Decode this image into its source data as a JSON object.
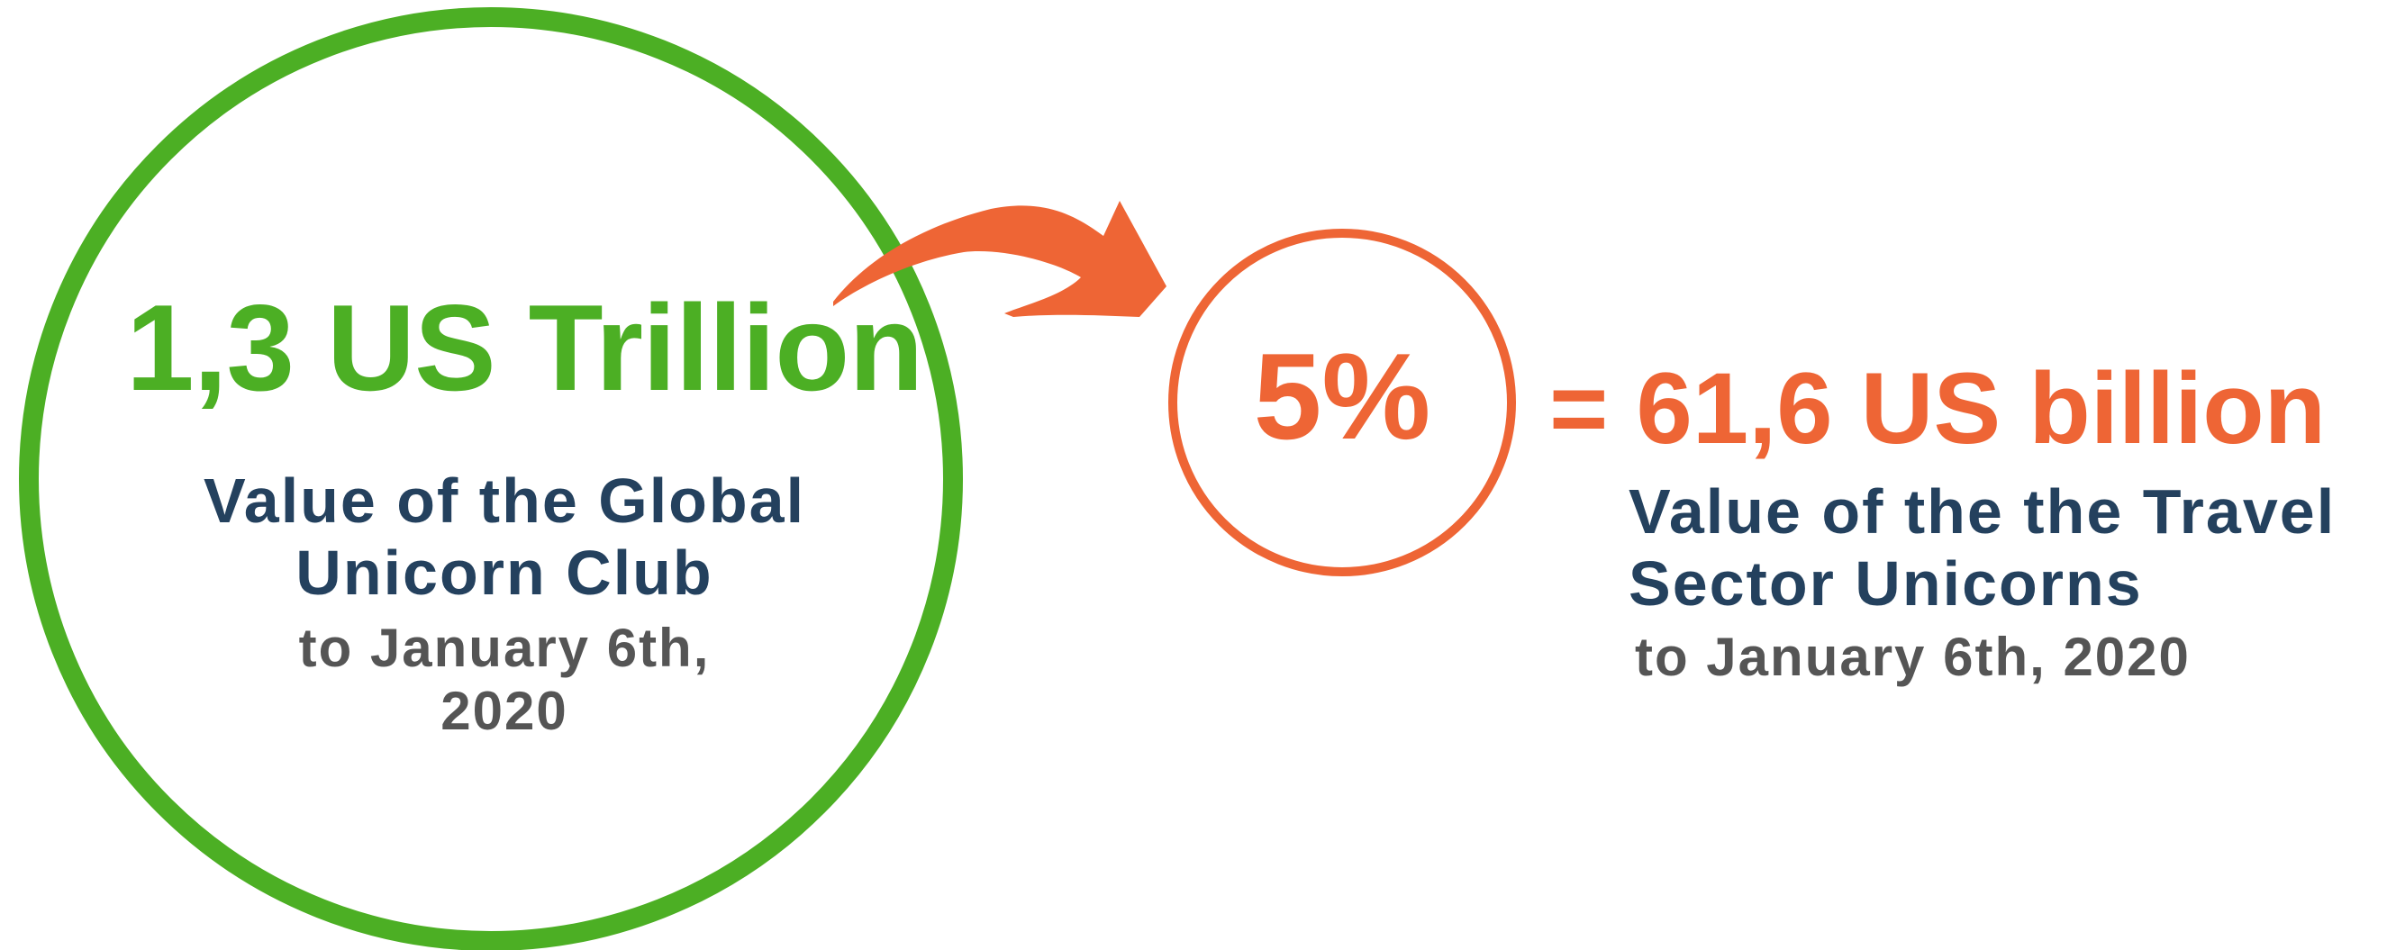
{
  "colors": {
    "green": "#4caf24",
    "orange": "#ee6535",
    "navy": "#24415e",
    "gray": "#555555"
  },
  "left": {
    "headline": "1,3 US Trillion",
    "subtitle_line1": "Value of the Global",
    "subtitle_line2": "Unicorn Club",
    "date_line1": "to January 6th,",
    "date_line2": "2020"
  },
  "arrow": {
    "icon": "curved-arrow-icon"
  },
  "right": {
    "percent": "5%",
    "equals_value": "= 61,6 US billion",
    "subtitle_line1": "Value of the the Travel",
    "subtitle_line2": "Sector Unicorns",
    "date": "to January 6th, 2020"
  }
}
